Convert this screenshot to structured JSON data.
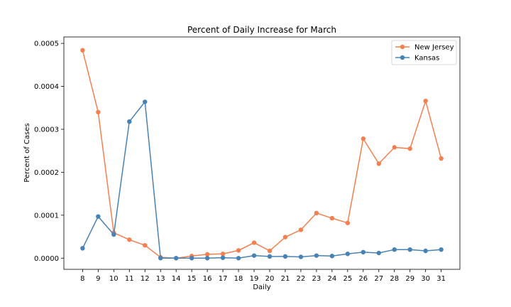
{
  "chart_data": {
    "type": "line",
    "title": "Percent of Daily Increase for March",
    "xlabel": "Daily",
    "ylabel": "Percent of Cases",
    "x": [
      8,
      9,
      10,
      11,
      12,
      13,
      14,
      15,
      16,
      17,
      18,
      19,
      20,
      21,
      22,
      23,
      24,
      25,
      26,
      27,
      28,
      29,
      30,
      31
    ],
    "xlim": [
      6.8,
      32.2
    ],
    "ylim": [
      -2.6e-05,
      0.000515
    ],
    "yticks": [
      0,
      0.0001,
      0.0002,
      0.0003,
      0.0004,
      0.0005
    ],
    "ytick_labels": [
      "0.0000",
      "0.0001",
      "0.0002",
      "0.0003",
      "0.0004",
      "0.0005"
    ],
    "grid": false,
    "legend_position": "top-right",
    "series": [
      {
        "name": "New Jersey",
        "color": "#f47f4f",
        "values": [
          0.000484,
          0.00034,
          5.9e-05,
          4.3e-05,
          3e-05,
          2e-06,
          0.0,
          5e-06,
          9e-06,
          1e-05,
          1.8e-05,
          3.6e-05,
          1.7e-05,
          4.9e-05,
          6.6e-05,
          0.000105,
          9.3e-05,
          8.2e-05,
          0.000278,
          0.00022,
          0.000258,
          0.000255,
          0.000366,
          0.000232
        ]
      },
      {
        "name": "Kansas",
        "color": "#4682b4",
        "values": [
          2.3e-05,
          9.7e-05,
          5.5e-05,
          0.000318,
          0.000364,
          0.0,
          0.0,
          0.0,
          0.0,
          1e-06,
          0.0,
          6e-06,
          4e-06,
          4e-06,
          3e-06,
          6e-06,
          5e-06,
          1e-05,
          1.4e-05,
          1.2e-05,
          2e-05,
          2e-05,
          1.7e-05,
          2e-05
        ]
      }
    ]
  }
}
